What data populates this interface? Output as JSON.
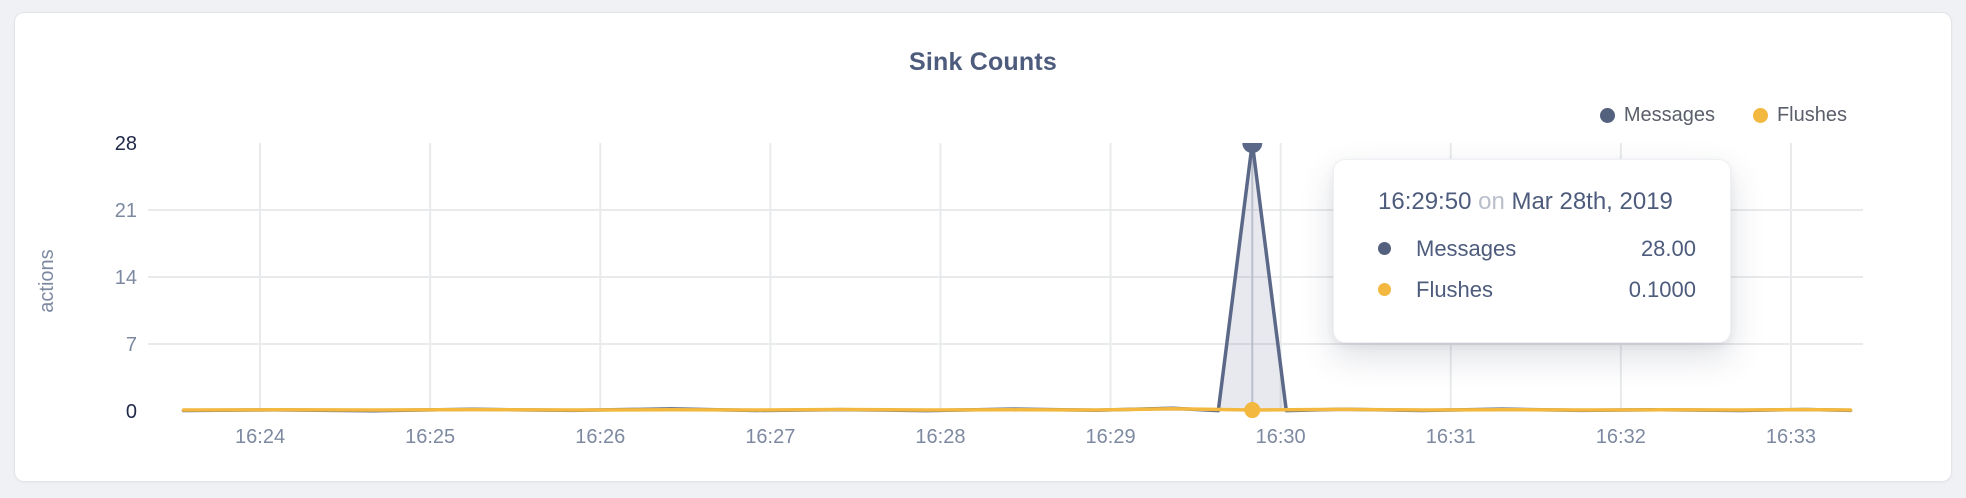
{
  "page": {
    "background": "#f0f1f4"
  },
  "card": {
    "background": "#ffffff",
    "border_color": "#e3e4e8"
  },
  "header": {
    "title": "Sink Counts",
    "title_color": "#4d5b7c"
  },
  "legend": {
    "text_color": "#5a5f6b",
    "items": [
      {
        "label": "Messages",
        "color": "#53617f"
      },
      {
        "label": "Flushes",
        "color": "#f2b840"
      }
    ]
  },
  "chart_data": {
    "type": "area",
    "title": "Sink Counts",
    "xlabel": "",
    "ylabel": "actions",
    "ylim": [
      0,
      28
    ],
    "x_domain_seconds": [
      0,
      594
    ],
    "grid": true,
    "legend_position": "top-right",
    "grid_color": "#e9eaec",
    "crosshair_color": "#c9ced6",
    "tick_color": "#7d89a1",
    "tick_emphasis_color": "#20294a",
    "y_ticks": [
      {
        "value": 0,
        "emphasis": true,
        "gridline": false
      },
      {
        "value": 7,
        "emphasis": false,
        "gridline": true
      },
      {
        "value": 14,
        "emphasis": false,
        "gridline": true
      },
      {
        "value": 21,
        "emphasis": false,
        "gridline": true
      },
      {
        "value": 28,
        "emphasis": true,
        "gridline": false
      }
    ],
    "x_ticks": [
      {
        "t": 30,
        "label": "16:24"
      },
      {
        "t": 90,
        "label": "16:25"
      },
      {
        "t": 150,
        "label": "16:26"
      },
      {
        "t": 210,
        "label": "16:27"
      },
      {
        "t": 270,
        "label": "16:28"
      },
      {
        "t": 330,
        "label": "16:29"
      },
      {
        "t": 390,
        "label": "16:30"
      },
      {
        "t": 450,
        "label": "16:31"
      },
      {
        "t": 510,
        "label": "16:32"
      },
      {
        "t": 570,
        "label": "16:33"
      }
    ],
    "series": [
      {
        "name": "Messages",
        "color": "#5b6887",
        "area_fill": "rgba(96,108,142,0.15)",
        "points": [
          [
            3,
            0.05
          ],
          [
            35,
            0.12
          ],
          [
            70,
            0.02
          ],
          [
            105,
            0.18
          ],
          [
            140,
            0.06
          ],
          [
            175,
            0.22
          ],
          [
            205,
            0.05
          ],
          [
            235,
            0.15
          ],
          [
            265,
            0.04
          ],
          [
            295,
            0.2
          ],
          [
            325,
            0.08
          ],
          [
            352,
            0.28
          ],
          [
            368,
            0.04
          ],
          [
            380,
            28
          ],
          [
            392,
            0.04
          ],
          [
            412,
            0.18
          ],
          [
            440,
            0.05
          ],
          [
            468,
            0.2
          ],
          [
            496,
            0.06
          ],
          [
            524,
            0.14
          ],
          [
            552,
            0.05
          ],
          [
            575,
            0.16
          ],
          [
            591,
            0.06
          ]
        ]
      },
      {
        "name": "Flushes",
        "color": "#f2b840",
        "area_fill": null,
        "points": [
          [
            3,
            0.1
          ],
          [
            35,
            0.13
          ],
          [
            70,
            0.1
          ],
          [
            105,
            0.15
          ],
          [
            140,
            0.1
          ],
          [
            175,
            0.13
          ],
          [
            205,
            0.1
          ],
          [
            235,
            0.16
          ],
          [
            265,
            0.1
          ],
          [
            295,
            0.13
          ],
          [
            325,
            0.1
          ],
          [
            352,
            0.24
          ],
          [
            380,
            0.1
          ],
          [
            412,
            0.17
          ],
          [
            440,
            0.1
          ],
          [
            468,
            0.14
          ],
          [
            496,
            0.1
          ],
          [
            524,
            0.13
          ],
          [
            552,
            0.1
          ],
          [
            575,
            0.15
          ],
          [
            591,
            0.1
          ]
        ]
      }
    ],
    "hover": {
      "t": 380,
      "time": "16:29:50",
      "points": [
        {
          "series": "Messages",
          "value": 28
        },
        {
          "series": "Flushes",
          "value": 0.1
        }
      ]
    }
  },
  "tooltip": {
    "time": "16:29:50",
    "preposition": "on",
    "date": "Mar 28th, 2019",
    "text_color": "#4d5b7c",
    "rows": [
      {
        "label": "Messages",
        "value": "28.00",
        "color": "#53617f"
      },
      {
        "label": "Flushes",
        "value": "0.1000",
        "color": "#f2b840"
      }
    ]
  }
}
